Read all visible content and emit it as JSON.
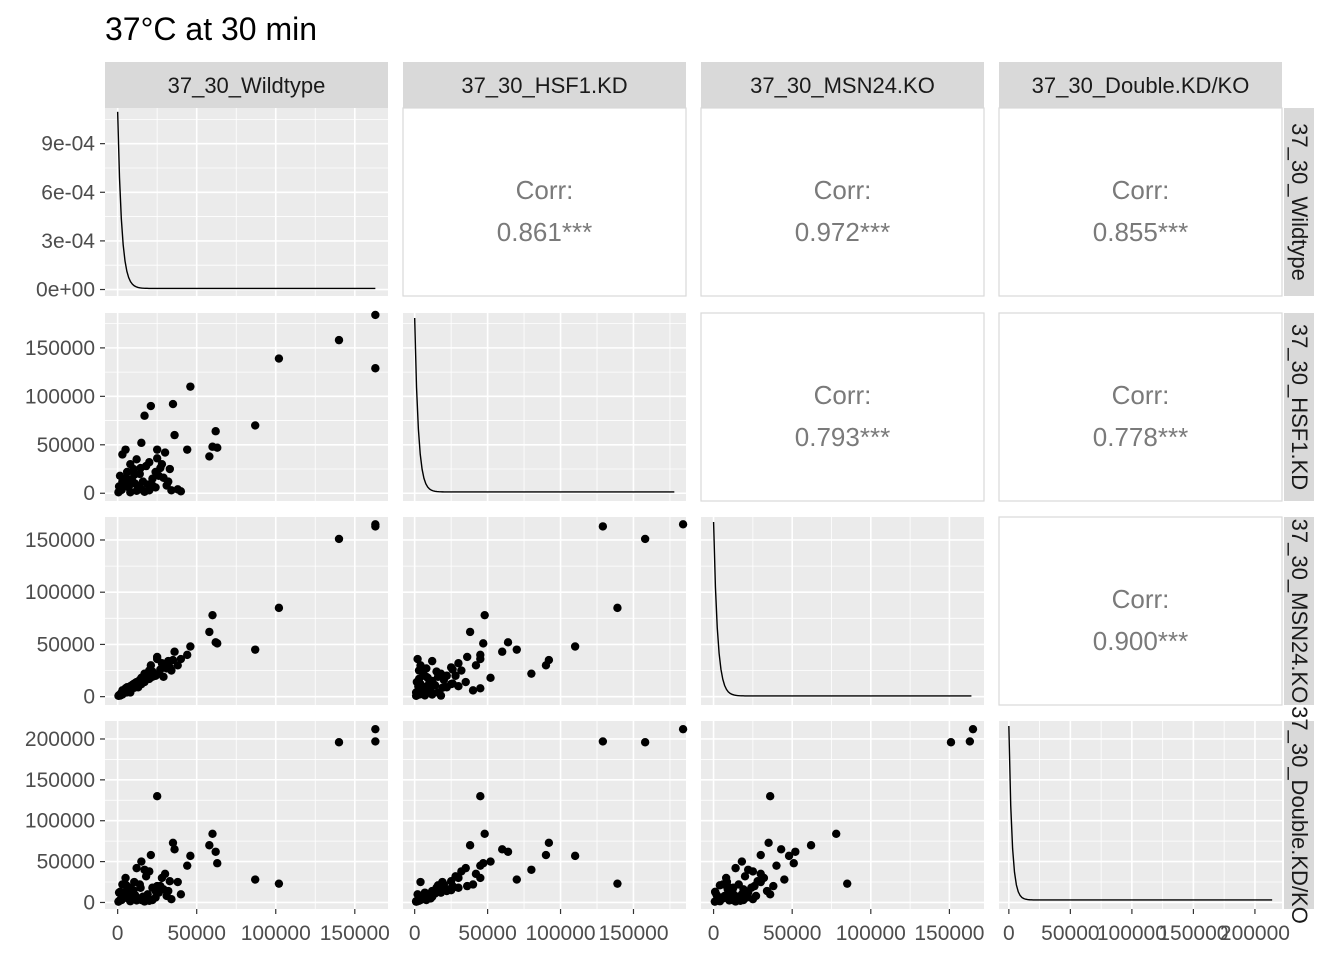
{
  "title": "37°C at 30 min",
  "variables": [
    "37_30_Wildtype",
    "37_30_HSF1.KD",
    "37_30_MSN24.KO",
    "37_30_Double.KD/KO"
  ],
  "colors": {
    "panel_bg": "#EBEBEB",
    "grid": "#FFFFFF",
    "strip_bg": "#D9D9D9",
    "point": "#000000",
    "corr_text": "#7A7A7A",
    "tick_text": "#4D4D4D"
  },
  "chart_data": {
    "type": "scatter",
    "layout": "pairs-matrix",
    "grid": true,
    "ranges": [
      [
        -8000,
        171000
      ],
      [
        -8000,
        186000
      ],
      [
        -8000,
        172000
      ],
      [
        -8000,
        222000
      ]
    ],
    "x_ticks": [
      [
        0,
        50000,
        100000,
        150000
      ],
      [
        0,
        50000,
        100000,
        150000
      ],
      [
        0,
        50000,
        100000,
        150000
      ],
      [
        0,
        50000,
        100000,
        150000,
        200000
      ]
    ],
    "x_tick_labels": [
      [
        "0",
        "50000",
        "100000",
        "150000"
      ],
      [
        "0",
        "50000",
        "100000",
        "150000"
      ],
      [
        "0",
        "50000",
        "100000",
        "150000"
      ],
      [
        "0",
        "50000",
        "100000",
        "150000",
        "200000"
      ]
    ],
    "diag_density": {
      "ylim": [
        -4e-05,
        0.00112
      ],
      "y_ticks": [
        0,
        0.0003,
        0.0006,
        0.0009
      ],
      "y_tick_labels": [
        "0e+00",
        "3e-04",
        "6e-04",
        "9e-04"
      ],
      "peak": 0.00109
    },
    "y_ticks": {
      "1": [
        0,
        50000,
        100000,
        150000
      ],
      "2": [
        0,
        50000,
        100000,
        150000
      ],
      "3": [
        0,
        50000,
        100000,
        150000,
        200000
      ]
    },
    "y_tick_labels": {
      "1": [
        "0",
        "50000",
        "100000",
        "150000"
      ],
      "2": [
        "0",
        "50000",
        "100000",
        "150000"
      ],
      "3": [
        "0",
        "50000",
        "100000",
        "150000",
        "200000"
      ]
    },
    "correlations": [
      {
        "row": 0,
        "col": 1,
        "label": "Corr:",
        "value": "0.861***"
      },
      {
        "row": 0,
        "col": 2,
        "label": "Corr:",
        "value": "0.972***"
      },
      {
        "row": 0,
        "col": 3,
        "label": "Corr:",
        "value": "0.855***"
      },
      {
        "row": 1,
        "col": 2,
        "label": "Corr:",
        "value": "0.793***"
      },
      {
        "row": 1,
        "col": 3,
        "label": "Corr:",
        "value": "0.778***"
      },
      {
        "row": 2,
        "col": 3,
        "label": "Corr:",
        "value": "0.900***"
      }
    ],
    "points": [
      [
        163000,
        184000,
        165000,
        212000
      ],
      [
        163000,
        129000,
        163000,
        197000
      ],
      [
        140000,
        158000,
        151000,
        196000
      ],
      [
        102000,
        139000,
        85000,
        23000
      ],
      [
        87000,
        70000,
        45000,
        28000
      ],
      [
        62000,
        64000,
        52000,
        62000
      ],
      [
        60000,
        48000,
        78000,
        84000
      ],
      [
        63000,
        47000,
        51000,
        48000
      ],
      [
        58000,
        38000,
        62000,
        70000
      ],
      [
        46000,
        110000,
        48000,
        57000
      ],
      [
        44000,
        45000,
        40000,
        45000
      ],
      [
        35000,
        92000,
        35000,
        73000
      ],
      [
        25000,
        45000,
        36000,
        130000
      ],
      [
        21000,
        90000,
        30000,
        58000
      ],
      [
        36000,
        60000,
        43000,
        65000
      ],
      [
        30000,
        42000,
        30000,
        35000
      ],
      [
        17000,
        80000,
        22000,
        40000
      ],
      [
        15000,
        52000,
        18000,
        50000
      ],
      [
        20000,
        32000,
        25000,
        38000
      ],
      [
        28000,
        30000,
        32000,
        30000
      ],
      [
        33000,
        25000,
        28000,
        26000
      ],
      [
        18000,
        28000,
        20000,
        32000
      ],
      [
        12000,
        35000,
        14000,
        42000
      ],
      [
        5000,
        45000,
        8000,
        30000
      ],
      [
        3000,
        40000,
        6000,
        22000
      ],
      [
        8000,
        30000,
        10000,
        18000
      ],
      [
        10000,
        25000,
        12000,
        15000
      ],
      [
        14000,
        20000,
        16000,
        22000
      ],
      [
        22000,
        15000,
        24000,
        18000
      ],
      [
        26000,
        18000,
        22000,
        12000
      ],
      [
        32000,
        12000,
        34000,
        14000
      ],
      [
        38000,
        4000,
        30000,
        25000
      ],
      [
        40000,
        2000,
        36000,
        10000
      ],
      [
        25000,
        36000,
        38000,
        20000
      ],
      [
        6000,
        22000,
        9000,
        16000
      ],
      [
        9000,
        14000,
        11000,
        11000
      ],
      [
        11000,
        10000,
        13000,
        9000
      ],
      [
        4000,
        8000,
        5000,
        6000
      ],
      [
        2000,
        5000,
        3000,
        4000
      ],
      [
        1000,
        2000,
        1500,
        2000
      ],
      [
        500,
        1000,
        800,
        1000
      ],
      [
        7000,
        6000,
        7000,
        8000
      ],
      [
        13000,
        7000,
        9000,
        5000
      ],
      [
        16000,
        12000,
        15000,
        7000
      ],
      [
        19000,
        9000,
        18000,
        10000
      ],
      [
        24000,
        22000,
        20000,
        14000
      ],
      [
        27000,
        26000,
        26000,
        20000
      ],
      [
        29000,
        16000,
        19000,
        16000
      ],
      [
        31000,
        8000,
        27000,
        8000
      ],
      [
        15000,
        4000,
        12000,
        3000
      ],
      [
        20000,
        3000,
        17000,
        2000
      ],
      [
        24000,
        6000,
        21000,
        6000
      ],
      [
        8000,
        1000,
        4000,
        1500
      ],
      [
        3000,
        12000,
        2000,
        9000
      ],
      [
        1500,
        18000,
        1000,
        13000
      ],
      [
        5500,
        16000,
        4000,
        21000
      ],
      [
        12000,
        2500,
        10000,
        2500
      ],
      [
        17000,
        1500,
        14000,
        1200
      ],
      [
        34000,
        3000,
        25000,
        4000
      ],
      [
        22000,
        8000,
        19000,
        3000
      ],
      [
        6500,
        11000,
        6000,
        5000
      ],
      [
        2500,
        3500,
        2200,
        3000
      ],
      [
        900,
        7000,
        1200,
        12000
      ],
      [
        10500,
        19000,
        8500,
        25000
      ],
      [
        14500,
        26000,
        12500,
        18000
      ]
    ]
  }
}
